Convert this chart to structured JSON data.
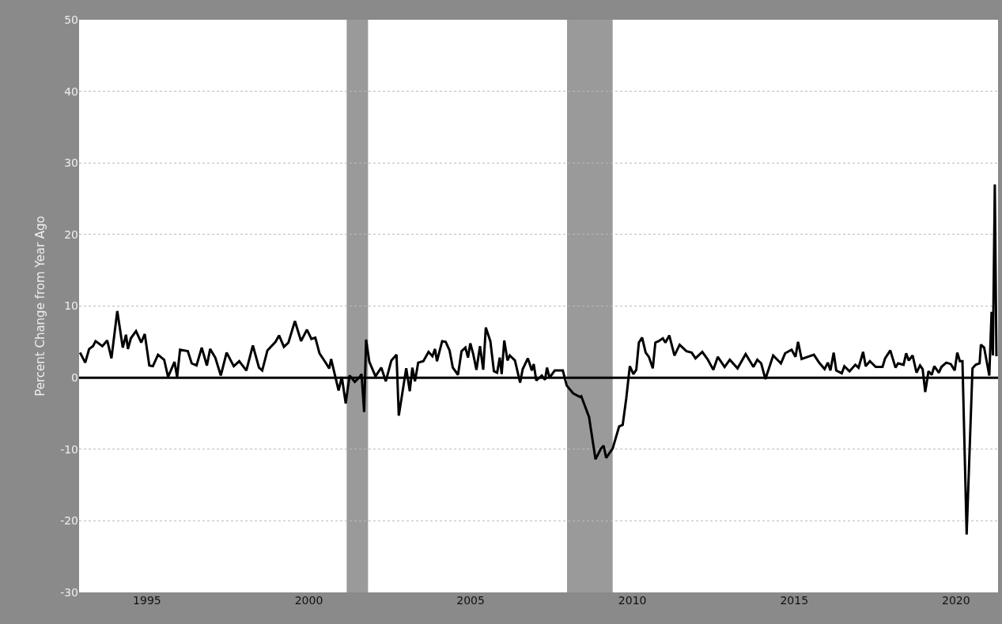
{
  "chart_data": {
    "type": "line",
    "ylabel": "Percent Change from Year Ago",
    "x": [
      1992.93,
      1993.09,
      1993.21,
      1993.33,
      1993.41,
      1993.62,
      1993.77,
      1993.9,
      1994.08,
      1994.25,
      1994.35,
      1994.41,
      1994.5,
      1994.66,
      1994.82,
      1994.93,
      1995.07,
      1995.18,
      1995.34,
      1995.53,
      1995.65,
      1995.85,
      1995.93,
      1996.02,
      1996.26,
      1996.38,
      1996.53,
      1996.69,
      1996.85,
      1996.95,
      1997.11,
      1997.28,
      1997.46,
      1997.68,
      1997.85,
      1998.07,
      1998.27,
      1998.46,
      1998.56,
      1998.72,
      1998.97,
      1999.08,
      1999.23,
      1999.37,
      1999.57,
      1999.76,
      1999.94,
      2000.08,
      2000.2,
      2000.33,
      2000.49,
      2000.63,
      2000.69,
      2000.92,
      2001.02,
      2001.14,
      2001.26,
      2001.42,
      2001.57,
      2001.63,
      2001.71,
      2001.77,
      2001.87,
      2002.06,
      2002.24,
      2002.38,
      2002.55,
      2002.71,
      2002.78,
      2003.01,
      2003.12,
      2003.2,
      2003.28,
      2003.38,
      2003.54,
      2003.7,
      2003.82,
      2003.9,
      2003.96,
      2004.12,
      2004.23,
      2004.35,
      2004.45,
      2004.61,
      2004.72,
      2004.84,
      2004.92,
      2004.99,
      2005.08,
      2005.18,
      2005.29,
      2005.39,
      2005.47,
      2005.61,
      2005.72,
      2005.82,
      2005.9,
      2005.96,
      2006.04,
      2006.14,
      2006.21,
      2006.37,
      2006.53,
      2006.61,
      2006.77,
      2006.89,
      2006.95,
      2007.03,
      2007.2,
      2007.3,
      2007.36,
      2007.44,
      2007.6,
      2007.85,
      2007.97,
      2008.17,
      2008.38,
      2008.42,
      2008.66,
      2008.86,
      2009.03,
      2009.11,
      2009.19,
      2009.39,
      2009.59,
      2009.7,
      2009.81,
      2009.92,
      2010.03,
      2010.12,
      2010.2,
      2010.3,
      2010.41,
      2010.51,
      2010.63,
      2010.71,
      2010.81,
      2010.94,
      2011.02,
      2011.14,
      2011.3,
      2011.46,
      2011.67,
      2011.83,
      2011.95,
      2012.16,
      2012.32,
      2012.5,
      2012.64,
      2012.85,
      2013.01,
      2013.25,
      2013.5,
      2013.74,
      2013.86,
      2013.98,
      2014.11,
      2014.35,
      2014.59,
      2014.72,
      2014.92,
      2015.04,
      2015.12,
      2015.23,
      2015.41,
      2015.61,
      2015.77,
      2015.94,
      2016.04,
      2016.12,
      2016.22,
      2016.3,
      2016.47,
      2016.55,
      2016.71,
      2016.89,
      2016.99,
      2017.13,
      2017.21,
      2017.34,
      2017.52,
      2017.73,
      2017.81,
      2017.97,
      2018.13,
      2018.21,
      2018.38,
      2018.46,
      2018.54,
      2018.66,
      2018.78,
      2018.89,
      2018.97,
      2019.05,
      2019.15,
      2019.25,
      2019.33,
      2019.47,
      2019.55,
      2019.7,
      2019.84,
      2019.96,
      2020.04,
      2020.12,
      2020.2,
      2020.33,
      2020.51,
      2020.61,
      2020.73,
      2020.77,
      2020.87,
      2021.03,
      2021.1,
      2021.14,
      2021.2,
      2021.25
    ],
    "series": [
      {
        "color": "#000000",
        "values": [
          3.5,
          2.1,
          4.0,
          4.4,
          5.1,
          4.4,
          5.2,
          2.7,
          9.3,
          4.2,
          6.0,
          4.0,
          5.5,
          6.5,
          4.9,
          6.1,
          1.7,
          1.6,
          3.2,
          2.5,
          0.1,
          2.2,
          0.1,
          3.9,
          3.7,
          2.0,
          1.7,
          4.2,
          1.7,
          4.0,
          2.8,
          0.3,
          3.5,
          1.6,
          2.3,
          1.0,
          4.5,
          1.4,
          1.0,
          3.8,
          5.0,
          5.9,
          4.3,
          4.9,
          7.9,
          5.1,
          6.7,
          5.4,
          5.6,
          3.4,
          2.3,
          1.3,
          2.6,
          -1.8,
          0.1,
          -3.6,
          0.3,
          -0.6,
          0.1,
          0.5,
          -4.8,
          5.3,
          2.2,
          0.2,
          1.4,
          -0.5,
          2.4,
          3.2,
          -5.3,
          1.3,
          -1.9,
          1.4,
          -0.5,
          2.1,
          2.3,
          3.6,
          3.0,
          4.0,
          2.3,
          5.1,
          5.0,
          3.8,
          1.4,
          0.4,
          3.7,
          4.2,
          2.8,
          4.8,
          3.3,
          1.1,
          4.4,
          1.1,
          7.0,
          5.1,
          0.9,
          0.7,
          2.8,
          0.5,
          5.2,
          2.4,
          3.1,
          2.4,
          -0.7,
          1.2,
          2.7,
          1.0,
          1.9,
          -0.4,
          0.3,
          -0.3,
          1.4,
          0.0,
          1.0,
          1.0,
          -1.1,
          -2.2,
          -2.7,
          -2.6,
          -5.5,
          -11.4,
          -9.9,
          -9.5,
          -11.2,
          -9.9,
          -6.8,
          -6.6,
          -2.9,
          1.6,
          0.5,
          1.1,
          4.9,
          5.6,
          3.5,
          2.9,
          1.3,
          4.9,
          5.1,
          5.5,
          4.9,
          5.9,
          3.1,
          4.6,
          3.7,
          3.5,
          2.7,
          3.6,
          2.6,
          1.1,
          2.9,
          1.5,
          2.5,
          1.3,
          3.3,
          1.5,
          2.5,
          2.0,
          -0.2,
          3.1,
          2.0,
          3.4,
          3.9,
          2.9,
          5.0,
          2.6,
          2.9,
          3.2,
          2.1,
          1.2,
          2.1,
          1.0,
          3.5,
          1.0,
          0.6,
          1.6,
          0.9,
          1.8,
          1.4,
          3.6,
          1.6,
          2.3,
          1.5,
          1.5,
          2.7,
          3.8,
          1.4,
          2.0,
          1.8,
          3.4,
          2.4,
          3.1,
          0.7,
          1.7,
          1.2,
          -2.0,
          0.9,
          0.4,
          1.6,
          0.7,
          1.5,
          2.1,
          1.9,
          1.0,
          3.5,
          2.3,
          2.3,
          -21.9,
          1.3,
          1.8,
          2.0,
          4.6,
          4.2,
          0.3,
          9.2,
          3.1,
          27,
          3
        ]
      }
    ],
    "xlim": [
      1992.9,
      2021.3
    ],
    "xticks": [
      1995,
      2000,
      2005,
      2010,
      2015,
      2020
    ],
    "ylim": [
      -30,
      50
    ],
    "yticks": [
      -30,
      -20,
      -10,
      0,
      10,
      20,
      30,
      40,
      50
    ],
    "grid": "y",
    "marker": "none",
    "line_style": "solid",
    "ref_lines": [
      {
        "axis": "y",
        "value": 0,
        "color": "#000000"
      }
    ],
    "bands": [
      {
        "axis": "x",
        "from": 2001.17,
        "to": 2001.83,
        "color": "#9a9a9a"
      },
      {
        "axis": "x",
        "from": 2007.98,
        "to": 2009.39,
        "color": "#9a9a9a"
      }
    ]
  }
}
